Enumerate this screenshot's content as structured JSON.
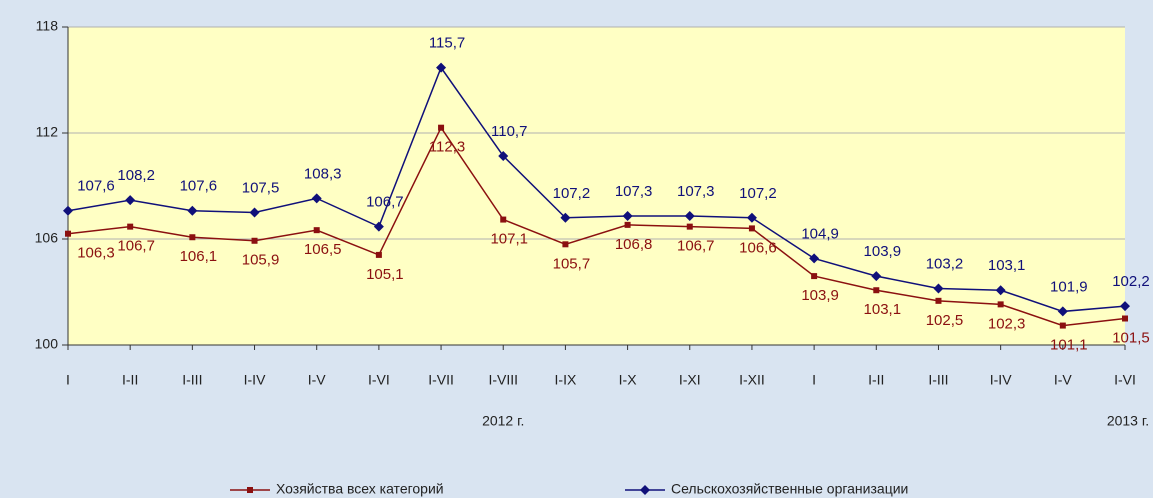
{
  "chart_data": {
    "type": "line",
    "categories": [
      "I",
      "I-II",
      "I-III",
      "I-IV",
      "I-V",
      "I-VI",
      "I-VII",
      "I-VIII",
      "I-IX",
      "I-X",
      "I-XI",
      "I-XII",
      "I",
      "I-II",
      "I-III",
      "I-IV",
      "I-V",
      "I-VI"
    ],
    "series": [
      {
        "name": "Хозяйства всех категорий",
        "color": "#8b1010",
        "values": [
          106.3,
          106.7,
          106.1,
          105.9,
          106.5,
          105.1,
          112.3,
          107.1,
          105.7,
          106.8,
          106.7,
          106.6,
          103.9,
          103.1,
          102.5,
          102.3,
          101.1,
          101.5
        ],
        "value_labels": [
          "106,3",
          "106,7",
          "106,1",
          "105,9",
          "106,5",
          "105,1",
          "112,3",
          "107,1",
          "105,7",
          "106,8",
          "106,7",
          "106,6",
          "103,9",
          "103,1",
          "102,5",
          "102,3",
          "101,1",
          "101,5"
        ]
      },
      {
        "name": "Сельскохозяйственные организации",
        "color": "#10107a",
        "values": [
          107.6,
          108.2,
          107.6,
          107.5,
          108.3,
          106.7,
          115.7,
          110.7,
          107.2,
          107.3,
          107.3,
          107.2,
          104.9,
          103.9,
          103.2,
          103.1,
          101.9,
          102.2
        ],
        "value_labels": [
          "107,6",
          "108,2",
          "107,6",
          "107,5",
          "108,3",
          "106,7",
          "115,7",
          "110,7",
          "107,2",
          "107,3",
          "107,3",
          "107,2",
          "104,9",
          "103,9",
          "103,2",
          "103,1",
          "101,9",
          "102,2"
        ]
      }
    ],
    "annotations": [
      "2012 г.",
      "2013 г."
    ],
    "ylim": [
      100,
      118
    ],
    "yticks": [
      100,
      106,
      112,
      118
    ],
    "grid": true,
    "legend": "bottom"
  }
}
